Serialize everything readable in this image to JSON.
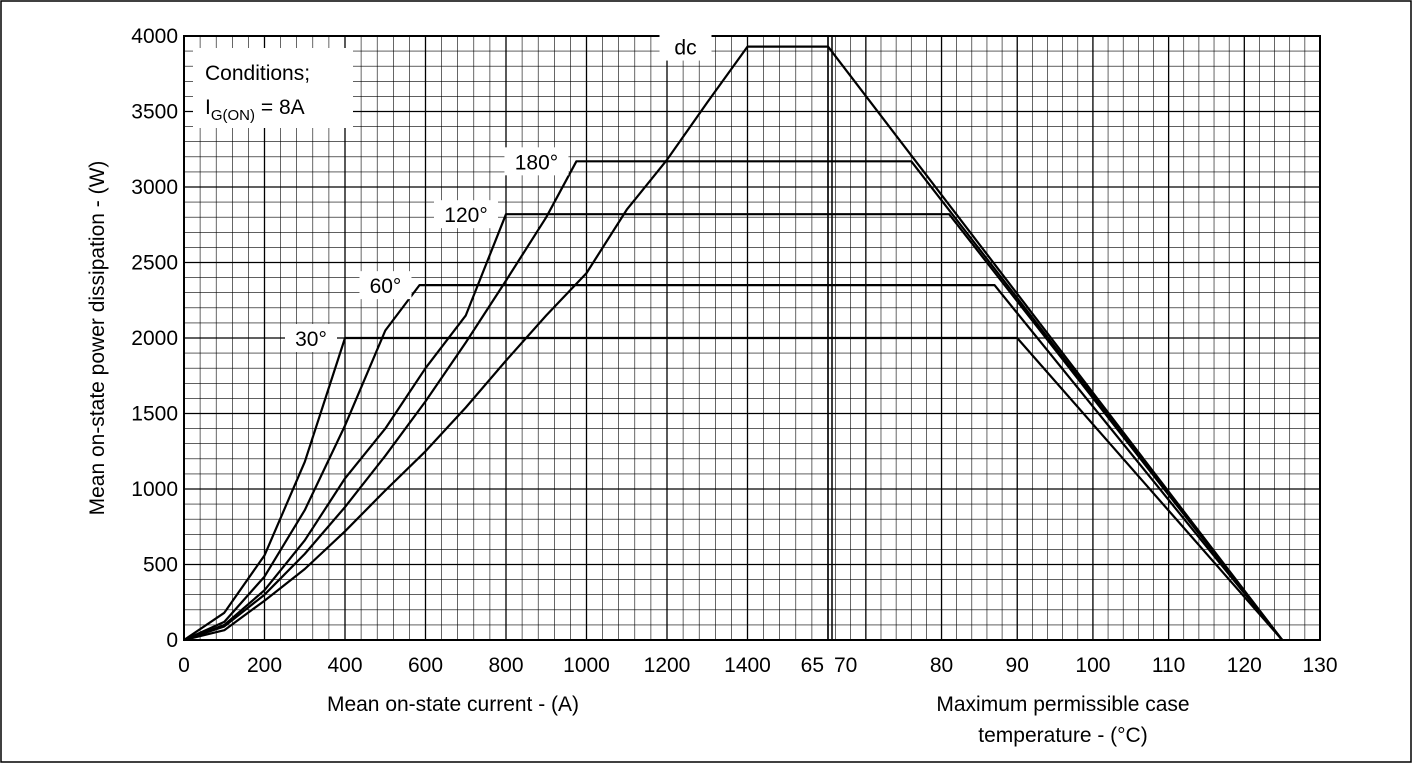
{
  "chart_data": {
    "type": "line",
    "title": "",
    "conditions": {
      "line1": "Conditions;",
      "line2_prefix": "I",
      "line2_sub": "G(ON)",
      "line2_suffix": " = 8A"
    },
    "ylabel": "Mean on-state power dissipation - (W)",
    "ylim": [
      0,
      4000
    ],
    "yticks": [
      0,
      500,
      1000,
      1500,
      2000,
      2500,
      3000,
      3500,
      4000
    ],
    "left_panel": {
      "xlabel": "Mean on-state current - (A)",
      "xlim": [
        0,
        1600
      ],
      "xticks": [
        0,
        200,
        400,
        600,
        800,
        1000,
        1200,
        1400
      ]
    },
    "right_panel": {
      "xlabel_line1": "Maximum permissible case",
      "xlabel_line2": "temperature - (°C)",
      "xlim": [
        60,
        130
      ],
      "xticks": [
        65,
        70,
        80,
        90,
        100,
        110,
        120,
        130
      ]
    },
    "grid": true,
    "series": [
      {
        "name": "30°",
        "current_curve": [
          [
            0,
            0
          ],
          [
            100,
            180
          ],
          [
            200,
            560
          ],
          [
            300,
            1180
          ],
          [
            400,
            2000
          ]
        ],
        "temp_line": [
          [
            90,
            2000
          ],
          [
            125,
            0
          ]
        ]
      },
      {
        "name": "60°",
        "current_curve": [
          [
            0,
            0
          ],
          [
            100,
            120
          ],
          [
            200,
            420
          ],
          [
            300,
            860
          ],
          [
            400,
            1420
          ],
          [
            500,
            2050
          ],
          [
            585,
            2350
          ]
        ],
        "temp_line": [
          [
            87,
            2350
          ],
          [
            125,
            0
          ]
        ]
      },
      {
        "name": "120°",
        "current_curve": [
          [
            0,
            0
          ],
          [
            100,
            100
          ],
          [
            200,
            330
          ],
          [
            300,
            660
          ],
          [
            400,
            1070
          ],
          [
            500,
            1400
          ],
          [
            600,
            1800
          ],
          [
            700,
            2150
          ],
          [
            800,
            2820
          ]
        ],
        "temp_line": [
          [
            81,
            2820
          ],
          [
            125,
            0
          ]
        ]
      },
      {
        "name": "180°",
        "current_curve": [
          [
            0,
            0
          ],
          [
            100,
            90
          ],
          [
            200,
            300
          ],
          [
            300,
            570
          ],
          [
            400,
            880
          ],
          [
            500,
            1220
          ],
          [
            600,
            1580
          ],
          [
            700,
            1970
          ],
          [
            800,
            2380
          ],
          [
            900,
            2800
          ],
          [
            975,
            3170
          ]
        ],
        "temp_line": [
          [
            76,
            3170
          ],
          [
            125,
            0
          ]
        ]
      },
      {
        "name": "dc",
        "current_curve": [
          [
            0,
            0
          ],
          [
            100,
            65
          ],
          [
            200,
            260
          ],
          [
            300,
            470
          ],
          [
            400,
            720
          ],
          [
            500,
            990
          ],
          [
            600,
            1250
          ],
          [
            700,
            1540
          ],
          [
            800,
            1850
          ],
          [
            900,
            2150
          ],
          [
            1000,
            2430
          ],
          [
            1100,
            2850
          ],
          [
            1200,
            3180
          ],
          [
            1300,
            3560
          ],
          [
            1400,
            3930
          ]
        ],
        "temp_line": [
          [
            65,
            3930
          ],
          [
            125,
            0
          ]
        ]
      }
    ]
  }
}
